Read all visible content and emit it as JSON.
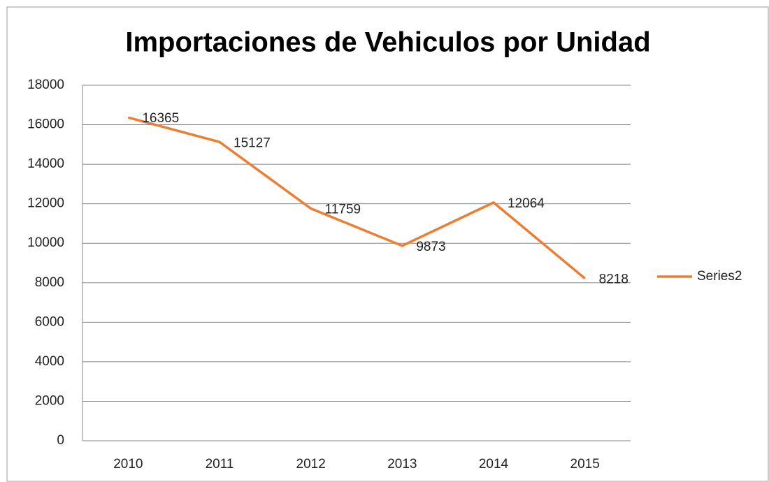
{
  "chart_data": {
    "type": "line",
    "title": "Importaciones de Vehiculos por Unidad",
    "categories": [
      "2010",
      "2011",
      "2012",
      "2013",
      "2014",
      "2015"
    ],
    "series": [
      {
        "name": "Series2",
        "color": "#ed7d31",
        "values": [
          16365,
          15127,
          11759,
          9873,
          12064,
          8218
        ]
      }
    ],
    "ylim": [
      0,
      18000
    ],
    "yticks": [
      0,
      2000,
      4000,
      6000,
      8000,
      10000,
      12000,
      14000,
      16000,
      18000
    ],
    "grid": true,
    "legend": "right",
    "data_labels": true
  }
}
